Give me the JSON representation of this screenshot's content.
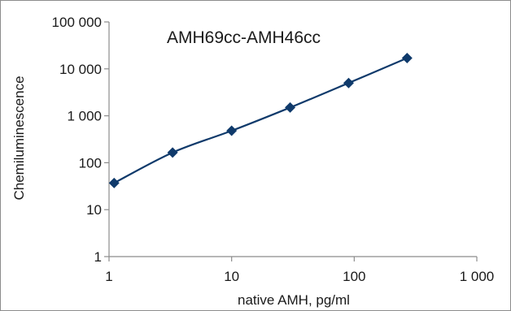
{
  "chart_data": {
    "type": "line",
    "title": "AMH69cc-AMH46cc",
    "xlabel": "native AMH, pg/ml",
    "ylabel": "Chemiluminescence",
    "x_scale": "log",
    "y_scale": "log",
    "xlim": [
      1,
      1000
    ],
    "ylim": [
      1,
      100000
    ],
    "x_ticks": [
      1,
      10,
      100,
      1000
    ],
    "x_tick_labels": [
      "1",
      "10",
      "100",
      "1 000"
    ],
    "y_ticks": [
      1,
      10,
      100,
      1000,
      10000,
      100000
    ],
    "y_tick_labels": [
      "1",
      "10",
      "100",
      "1 000",
      "10 000",
      "100 000"
    ],
    "grid": false,
    "series": [
      {
        "x": [
          1.1,
          3.3,
          10,
          30,
          90,
          270
        ],
        "y": [
          37,
          165,
          480,
          1500,
          5000,
          17000
        ],
        "color": "#0f3a6b",
        "marker": "diamond"
      }
    ]
  }
}
